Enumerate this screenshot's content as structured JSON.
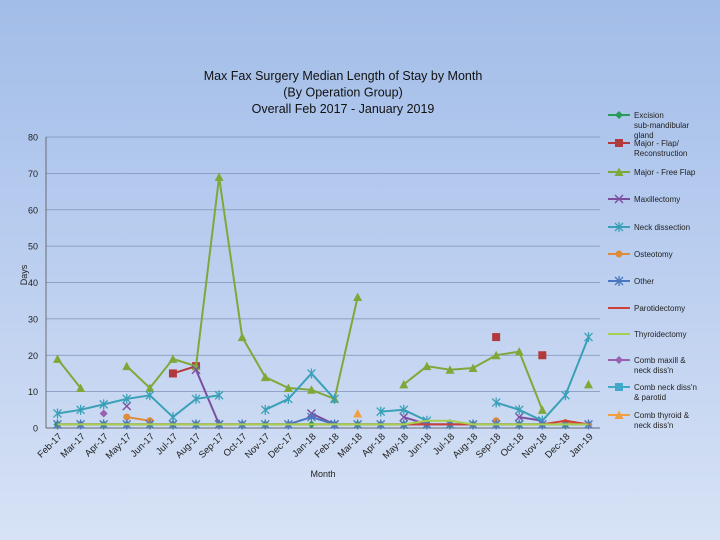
{
  "chart_data": {
    "type": "line",
    "title": [
      "Max Fax Surgery Median Length of Stay by Month",
      "(By Operation Group)",
      "Overall Feb 2017 - January 2019"
    ],
    "xlabel": "Month",
    "ylabel": "Days",
    "ylim": [
      0,
      80
    ],
    "yticks": [
      0,
      10,
      20,
      30,
      40,
      50,
      60,
      70,
      80
    ],
    "grid": true,
    "legend_position": "right",
    "categories": [
      "Feb-17",
      "Mar-17",
      "Apr-17",
      "May-17",
      "Jun-17",
      "Jul-17",
      "Aug-17",
      "Sep-17",
      "Oct-17",
      "Nov-17",
      "Dec-17",
      "Jan-18",
      "Feb-18",
      "Mar-18",
      "Apr-18",
      "May-18",
      "Jun-18",
      "Jul-18",
      "Aug-18",
      "Sep-18",
      "Oct-18",
      "Nov-18",
      "Dec-18",
      "Jan-19"
    ],
    "series": [
      {
        "name": "Excision sub-mandibular gland",
        "color": "#2a9a5a",
        "marker": "diamond",
        "values": [
          1,
          1,
          1,
          1,
          1,
          1,
          1,
          1,
          1,
          1,
          1,
          1,
          1,
          1,
          1,
          1,
          1,
          1,
          1,
          1,
          1,
          1,
          1,
          1
        ]
      },
      {
        "name": "Major - Flap/ Reconstruction",
        "color": "#b23a3a",
        "marker": "square",
        "values": [
          null,
          null,
          null,
          null,
          null,
          15,
          17,
          null,
          null,
          null,
          null,
          null,
          null,
          null,
          null,
          null,
          null,
          null,
          null,
          25,
          null,
          20,
          null,
          null
        ]
      },
      {
        "name": "Major - Free Flap",
        "color": "#7fa83a",
        "marker": "triangle",
        "values": [
          19,
          11,
          null,
          17,
          11,
          19,
          17,
          69,
          25,
          14,
          11,
          10.5,
          8,
          36,
          null,
          12,
          17,
          16,
          16.5,
          20,
          21,
          5,
          null,
          12
        ]
      },
      {
        "name": "Maxillectomy",
        "color": "#7b4fa0",
        "marker": "x",
        "values": [
          null,
          null,
          null,
          6,
          null,
          null,
          16,
          1,
          null,
          null,
          null,
          4,
          1,
          null,
          null,
          3,
          1,
          null,
          null,
          null,
          3,
          2,
          null,
          null
        ]
      },
      {
        "name": "Neck dissection",
        "color": "#3aa0b8",
        "marker": "star",
        "values": [
          4,
          5,
          6.5,
          8,
          9,
          3,
          8,
          9,
          null,
          5,
          8,
          15,
          8,
          null,
          4.5,
          5,
          2,
          null,
          null,
          7,
          5,
          2,
          9,
          25
        ]
      },
      {
        "name": "Osteotomy",
        "color": "#e08a3a",
        "marker": "circle",
        "values": [
          null,
          null,
          null,
          3,
          2,
          null,
          null,
          null,
          null,
          null,
          null,
          null,
          null,
          null,
          null,
          null,
          null,
          null,
          null,
          2,
          null,
          null,
          1.5,
          1
        ]
      },
      {
        "name": "Other",
        "color": "#4a78c0",
        "marker": "star",
        "values": [
          1,
          1,
          1,
          1,
          1,
          1,
          1,
          1,
          1,
          1,
          1,
          3,
          1,
          1,
          1,
          1,
          1,
          1,
          1,
          1,
          1,
          1,
          1,
          1
        ]
      },
      {
        "name": "Parotidectomy",
        "color": "#d0403a",
        "marker": "none",
        "values": [
          1,
          1,
          1,
          1,
          1,
          1,
          1,
          1,
          1,
          1,
          1,
          1,
          1,
          1,
          1,
          1,
          1,
          1,
          1,
          1,
          1,
          1,
          2,
          1
        ]
      },
      {
        "name": "Thyroidectomy",
        "color": "#a8d050",
        "marker": "none",
        "values": [
          1,
          1,
          1,
          1,
          1,
          1,
          1,
          1,
          1,
          1,
          1,
          1,
          1,
          1,
          1,
          1,
          2,
          2,
          1,
          1,
          1,
          1,
          1,
          1
        ]
      },
      {
        "name": "Comb maxill & neck diss'n",
        "color": "#9a60b0",
        "marker": "diamond",
        "values": [
          null,
          null,
          4,
          null,
          null,
          null,
          null,
          null,
          null,
          null,
          null,
          null,
          null,
          null,
          null,
          null,
          null,
          null,
          null,
          null,
          null,
          null,
          null,
          null
        ]
      },
      {
        "name": "Comb neck diss'n & parotid",
        "color": "#40a8c8",
        "marker": "square",
        "values": [
          null,
          null,
          null,
          null,
          null,
          null,
          null,
          null,
          null,
          null,
          null,
          null,
          null,
          null,
          null,
          null,
          null,
          null,
          null,
          null,
          null,
          null,
          null,
          null
        ]
      },
      {
        "name": "Comb thyroid & neck diss'n",
        "color": "#f0a040",
        "marker": "triangle",
        "values": [
          null,
          null,
          null,
          null,
          null,
          null,
          null,
          null,
          null,
          null,
          null,
          null,
          null,
          4,
          null,
          null,
          null,
          null,
          null,
          null,
          null,
          null,
          null,
          null
        ]
      }
    ]
  }
}
